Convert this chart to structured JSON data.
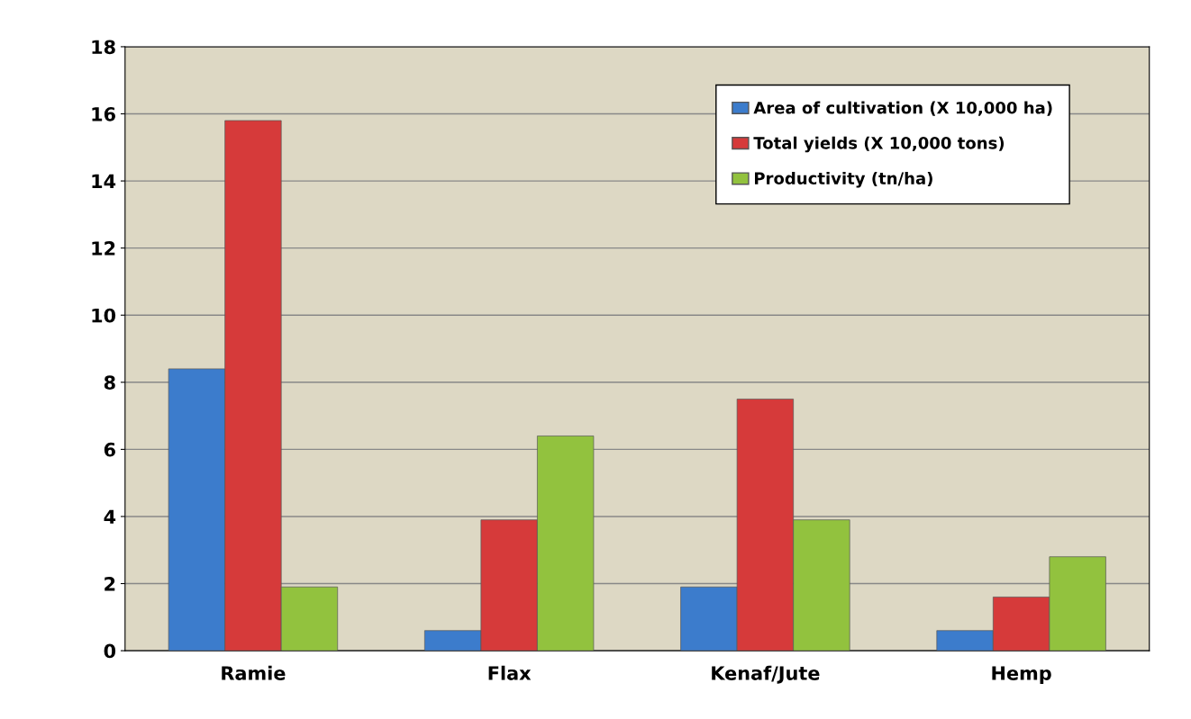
{
  "chart_data": {
    "type": "bar",
    "categories": [
      "Ramie",
      "Flax",
      "Kenaf/Jute",
      "Hemp"
    ],
    "series": [
      {
        "name": "Area of cultivation (X 10,000 ha)",
        "color": "#3c7ccc",
        "values": [
          8.4,
          0.6,
          1.9,
          0.6
        ]
      },
      {
        "name": "Total yields (X 10,000 tons)",
        "color": "#d63a3a",
        "values": [
          15.8,
          3.9,
          7.5,
          1.6
        ]
      },
      {
        "name": "Productivity (tn/ha)",
        "color": "#92c23e",
        "values": [
          1.9,
          6.4,
          3.9,
          2.8
        ]
      }
    ],
    "ylim": [
      0,
      18
    ],
    "yticks": [
      0,
      2,
      4,
      6,
      8,
      10,
      12,
      14,
      16,
      18
    ],
    "grid": "y",
    "legend": "top right"
  }
}
